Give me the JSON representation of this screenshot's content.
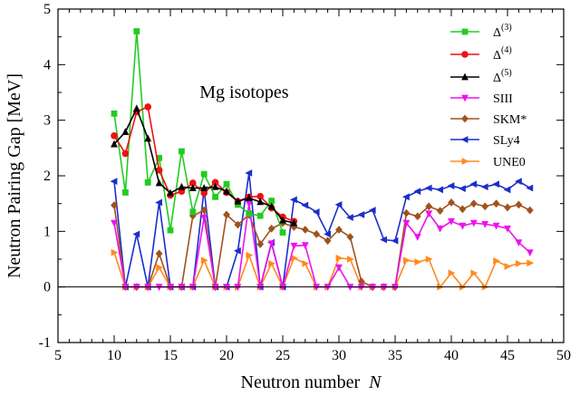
{
  "chart_data": {
    "type": "line",
    "xlabel": "Neutron number",
    "xlabel_var": "N",
    "ylabel": "Neutron Pairing Gap [MeV]",
    "annotation": "Mg isotopes",
    "xlim": [
      5,
      50
    ],
    "ylim": [
      -1,
      5
    ],
    "xticks": [
      5,
      10,
      15,
      20,
      25,
      30,
      35,
      40,
      45,
      50
    ],
    "yticks": [
      -1,
      0,
      1,
      2,
      3,
      4,
      5
    ],
    "zero_line": true,
    "grid": false,
    "legend_placement": "top-right",
    "series": [
      {
        "name": "Δ(3)",
        "label_base": "Δ",
        "label_sup": "(3)",
        "color": "#22cc22",
        "marker": "square",
        "x": [
          10,
          11,
          12,
          13,
          14,
          15,
          16,
          17,
          18,
          19,
          20,
          21,
          22,
          23,
          24,
          25
        ],
        "y": [
          3.12,
          1.7,
          4.6,
          1.88,
          2.32,
          1.02,
          2.44,
          1.35,
          2.03,
          1.62,
          1.85,
          1.48,
          1.32,
          1.28,
          1.55,
          0.98
        ]
      },
      {
        "name": "Δ(4)",
        "label_base": "Δ",
        "label_sup": "(4)",
        "color": "#ee1111",
        "marker": "circle",
        "x": [
          10,
          11,
          12,
          13,
          14,
          15,
          16,
          17,
          18,
          19,
          20,
          21,
          22,
          23,
          24,
          25,
          26
        ],
        "y": [
          2.72,
          2.4,
          3.15,
          3.24,
          2.1,
          1.65,
          1.72,
          1.87,
          1.69,
          1.88,
          1.7,
          1.54,
          1.62,
          1.63,
          1.42,
          1.26,
          1.18
        ]
      },
      {
        "name": "Δ(5)",
        "label_base": "Δ",
        "label_sup": "(5)",
        "color": "#000000",
        "marker": "triangle-up",
        "x": [
          10,
          11,
          12,
          13,
          14,
          15,
          16,
          17,
          18,
          19,
          20,
          21,
          22,
          23,
          24,
          25,
          26
        ],
        "y": [
          2.57,
          2.79,
          3.21,
          2.67,
          1.87,
          1.69,
          1.8,
          1.78,
          1.78,
          1.8,
          1.72,
          1.54,
          1.6,
          1.53,
          1.45,
          1.2,
          1.15
        ]
      },
      {
        "name": "SIII",
        "label_base": "SIII",
        "label_sup": "",
        "color": "#ee11ee",
        "marker": "triangle-down",
        "x": [
          10,
          11,
          12,
          13,
          14,
          15,
          16,
          17,
          18,
          19,
          20,
          21,
          22,
          23,
          24,
          25,
          26,
          27,
          28,
          29,
          30,
          31,
          32,
          33,
          34,
          35,
          36,
          37,
          38,
          39,
          40,
          41,
          42,
          43,
          44,
          45,
          46,
          47
        ],
        "y": [
          1.15,
          0.0,
          0.0,
          0.0,
          0.0,
          0.0,
          0.0,
          0.0,
          1.25,
          0.0,
          0.0,
          0.0,
          1.5,
          0.0,
          0.78,
          0.0,
          0.74,
          0.75,
          0.0,
          0.0,
          0.35,
          0.0,
          0.0,
          0.0,
          0.0,
          0.0,
          1.15,
          0.9,
          1.32,
          1.05,
          1.18,
          1.1,
          1.15,
          1.13,
          1.1,
          1.05,
          0.8,
          0.62
        ]
      },
      {
        "name": "SKM*",
        "label_base": "SKM*",
        "label_sup": "",
        "color": "#a0521e",
        "marker": "diamond",
        "x": [
          10,
          11,
          12,
          13,
          14,
          15,
          16,
          17,
          18,
          19,
          20,
          21,
          22,
          23,
          24,
          25,
          26,
          27,
          28,
          29,
          30,
          31,
          32,
          33,
          34,
          35,
          36,
          37,
          38,
          39,
          40,
          41,
          42,
          43,
          44,
          45,
          46,
          47
        ],
        "y": [
          1.47,
          0.0,
          0.0,
          0.0,
          0.6,
          0.0,
          0.0,
          1.28,
          1.38,
          0.0,
          1.3,
          1.12,
          1.3,
          0.77,
          1.05,
          1.15,
          1.08,
          1.03,
          0.95,
          0.83,
          1.03,
          0.9,
          0.1,
          0.0,
          0.0,
          0.0,
          1.33,
          1.27,
          1.45,
          1.37,
          1.52,
          1.4,
          1.5,
          1.45,
          1.5,
          1.43,
          1.48,
          1.38
        ]
      },
      {
        "name": "SLy4",
        "label_base": "SLy4",
        "label_sup": "",
        "color": "#1a2ecc",
        "marker": "triangle-left",
        "x": [
          10,
          11,
          12,
          13,
          14,
          15,
          16,
          17,
          18,
          19,
          20,
          21,
          22,
          23,
          24,
          25,
          26,
          27,
          28,
          29,
          30,
          31,
          32,
          33,
          34,
          35,
          36,
          37,
          38,
          39,
          40,
          41,
          42,
          43,
          44,
          45,
          46,
          47
        ],
        "y": [
          1.9,
          0.0,
          0.95,
          0.0,
          1.52,
          0.0,
          0.0,
          0.0,
          1.75,
          0.0,
          0.0,
          0.65,
          2.05,
          0.0,
          0.8,
          0.0,
          1.57,
          1.47,
          1.35,
          0.95,
          1.48,
          1.25,
          1.3,
          1.38,
          0.85,
          0.83,
          1.62,
          1.72,
          1.78,
          1.75,
          1.82,
          1.77,
          1.85,
          1.8,
          1.85,
          1.75,
          1.9,
          1.78
        ]
      },
      {
        "name": "UNE0",
        "label_base": "UNE0",
        "label_sup": "",
        "color": "#ff8a1e",
        "marker": "triangle-right",
        "x": [
          10,
          11,
          12,
          13,
          14,
          15,
          16,
          17,
          18,
          19,
          20,
          21,
          22,
          23,
          24,
          25,
          26,
          27,
          28,
          29,
          30,
          31,
          32,
          33,
          34,
          35,
          36,
          37,
          38,
          39,
          40,
          41,
          42,
          43,
          44,
          45,
          46,
          47
        ],
        "y": [
          0.62,
          0.0,
          0.0,
          0.0,
          0.35,
          0.0,
          0.0,
          0.0,
          0.48,
          0.0,
          0.0,
          0.0,
          0.57,
          0.0,
          0.42,
          0.0,
          0.52,
          0.42,
          0.0,
          0.0,
          0.52,
          0.5,
          0.0,
          0.0,
          0.0,
          0.0,
          0.48,
          0.45,
          0.5,
          0.0,
          0.25,
          0.0,
          0.25,
          0.0,
          0.47,
          0.37,
          0.42,
          0.43
        ]
      }
    ]
  }
}
